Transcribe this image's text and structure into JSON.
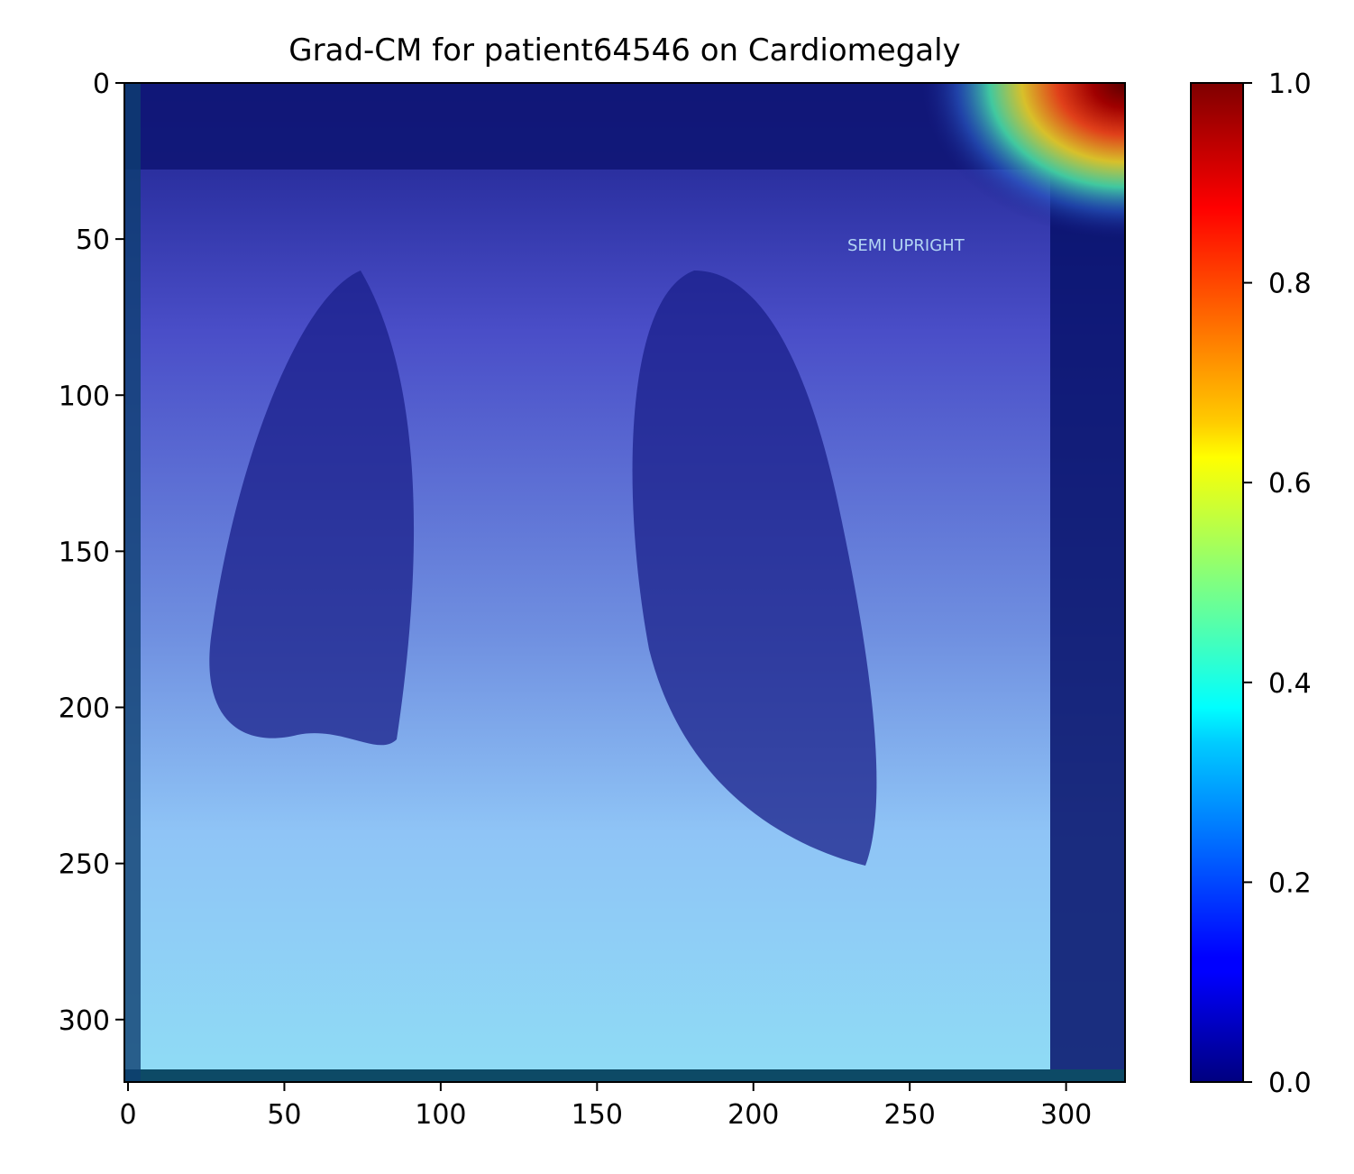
{
  "chart_data": {
    "type": "heatmap",
    "title": "Grad-CM for patient64546 on Cardiomegaly",
    "xlabel": "",
    "ylabel": "",
    "xlim": [
      0,
      320
    ],
    "ylim": [
      320,
      0
    ],
    "xticks": [
      0,
      50,
      100,
      150,
      200,
      250,
      300
    ],
    "yticks": [
      0,
      50,
      100,
      150,
      200,
      250,
      300
    ],
    "colorbar": {
      "colormap": "jet",
      "range": [
        0,
        1
      ],
      "ticks": [
        0.0,
        0.2,
        0.4,
        0.6,
        0.8,
        1.0
      ],
      "tick_labels": [
        "0.0",
        "0.2",
        "0.4",
        "0.6",
        "0.8",
        "1.0"
      ]
    },
    "heat_hotspot": {
      "x": 305,
      "y": 15,
      "peak": 1.0
    },
    "background_image": "chest-x-ray",
    "image_annotation_text": "SEMI UPRIGHT",
    "grid": false,
    "colors": {
      "low": "#00007f",
      "blue": "#0000ff",
      "cyan": "#00ffff",
      "yellow": "#ffff00",
      "red": "#ff0000",
      "high": "#7f0000"
    }
  }
}
